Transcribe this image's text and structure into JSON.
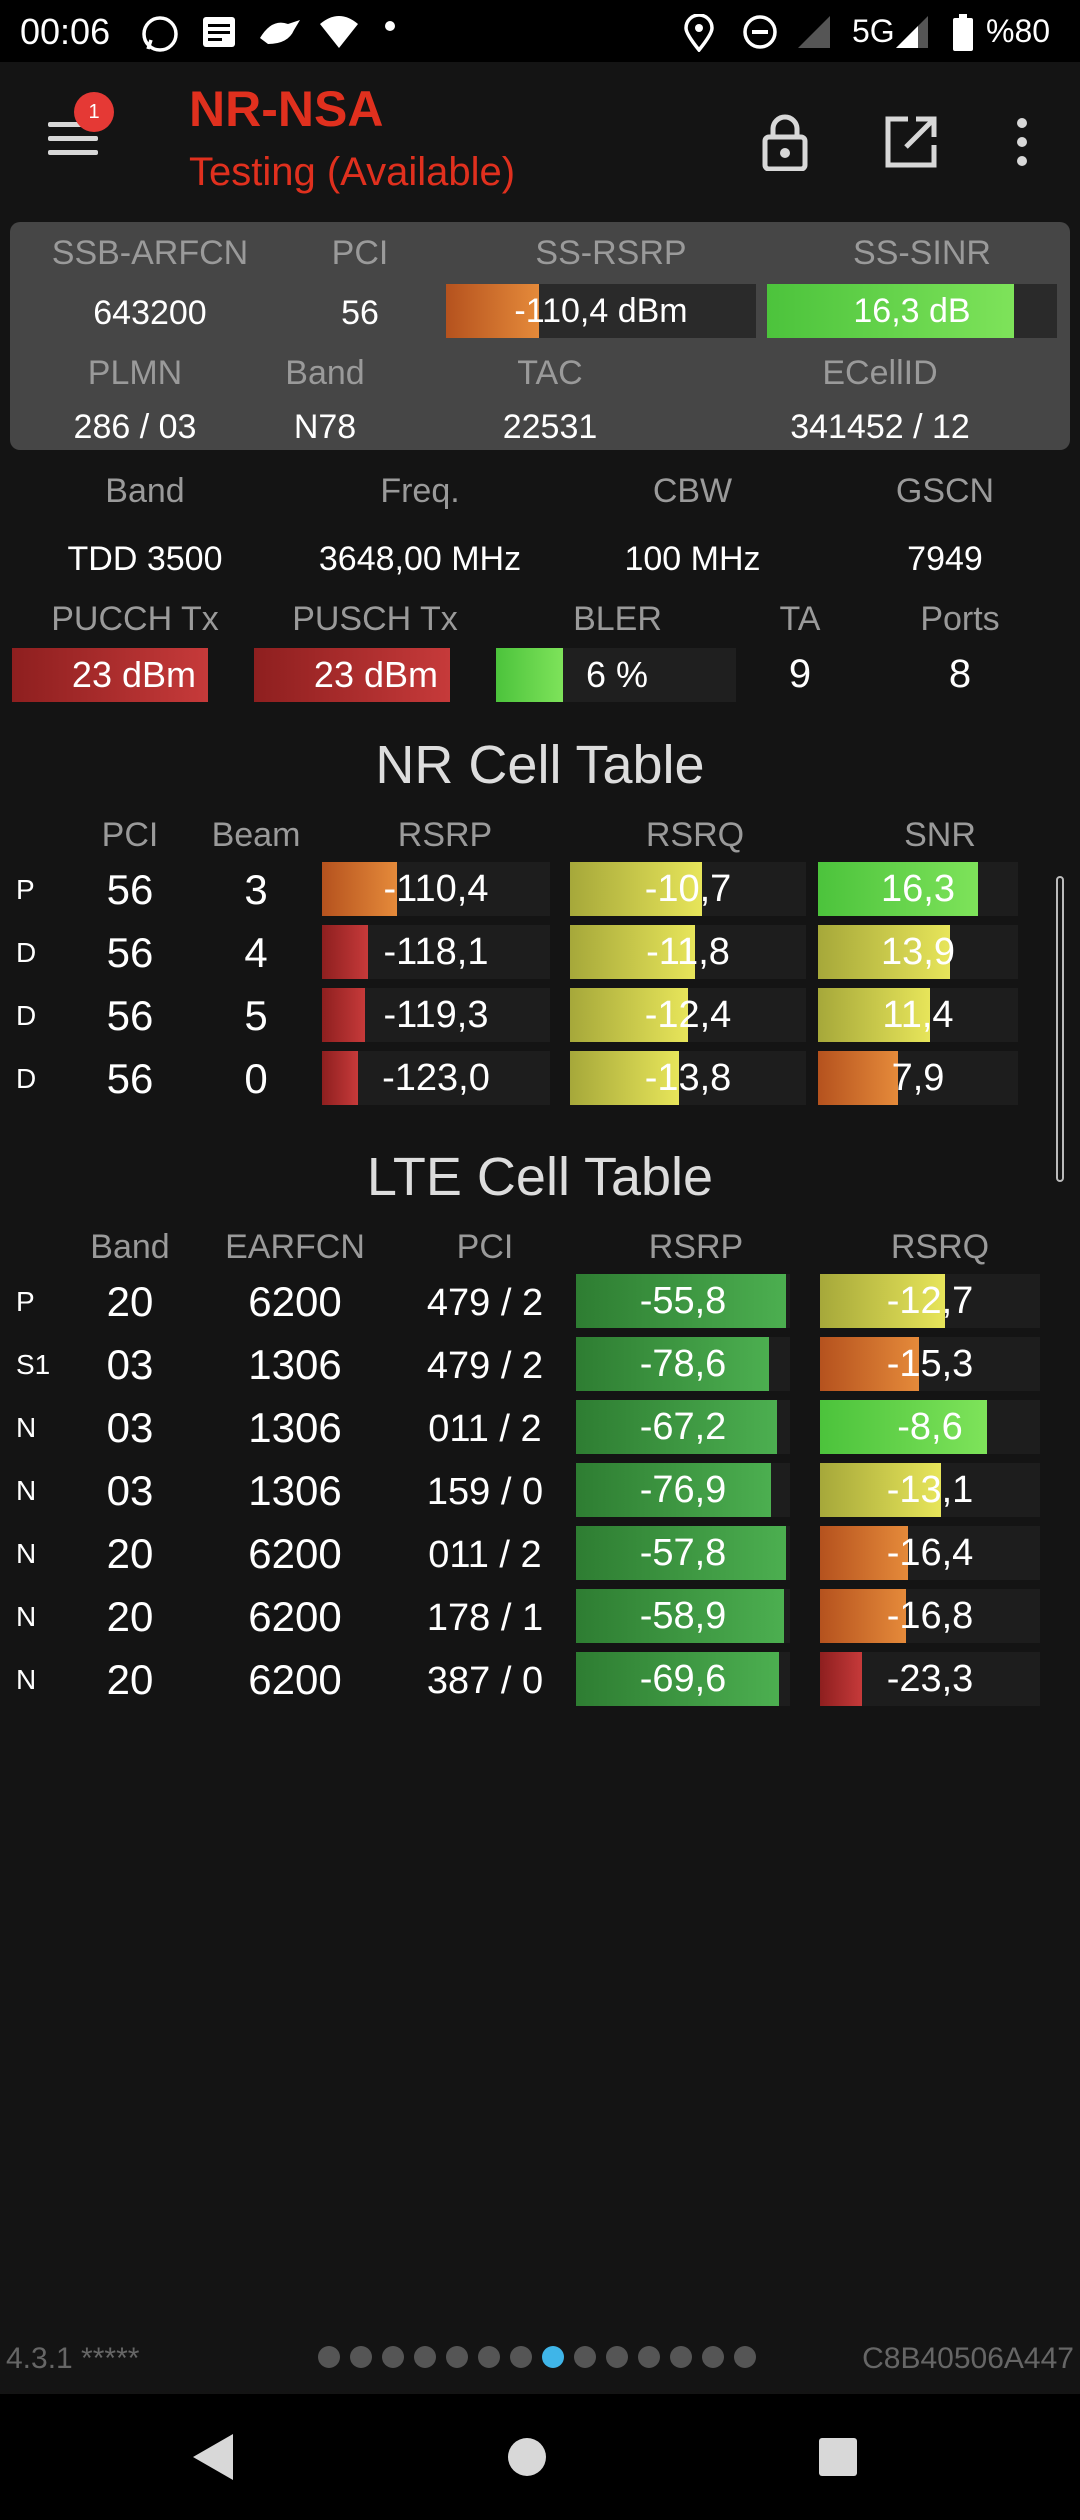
{
  "status_bar": {
    "time": "00:06",
    "network": "5G",
    "battery": "%80",
    "icons": [
      "whatsapp-icon",
      "message-icon",
      "bird-icon",
      "wifi-icon",
      "dot-icon",
      "location-icon",
      "dnd-icon",
      "signal-icon",
      "signal-5g-icon",
      "battery-icon"
    ]
  },
  "app_bar": {
    "title": "NR-NSA",
    "subtitle": "Testing (Available)",
    "notification_count": "1",
    "title_color": "#e0301e"
  },
  "summary": {
    "labels": {
      "arfcn": "SSB-ARFCN",
      "pci": "PCI",
      "rsrp": "SS-RSRP",
      "sinr": "SS-SINR",
      "plmn": "PLMN",
      "band": "Band",
      "tac": "TAC",
      "ecellid": "ECellID"
    },
    "values": {
      "arfcn": "643200",
      "pci": "56",
      "rsrp": "-110,4 dBm",
      "rsrp_level": 0.3,
      "sinr": "16,3 dB",
      "sinr_level": 0.85,
      "plmn": "286 / 03",
      "band": "N78",
      "tac": "22531",
      "ecellid": "341452 / 12"
    }
  },
  "radio": {
    "labels": {
      "band": "Band",
      "freq": "Freq.",
      "cbw": "CBW",
      "gscn": "GSCN",
      "pucch": "PUCCH Tx",
      "pusch": "PUSCH Tx",
      "bler": "BLER",
      "ta": "TA",
      "ports": "Ports"
    },
    "values": {
      "band": "TDD 3500",
      "freq": "3648,00 MHz",
      "cbw": "100 MHz",
      "gscn": "7949",
      "pucch": "23 dBm",
      "pusch": "23 dBm",
      "bler": "6 %",
      "bler_level": 0.28,
      "ta": "9",
      "ports": "8"
    }
  },
  "nr_table": {
    "title": "NR Cell Table",
    "headers": [
      "PCI",
      "Beam",
      "RSRP",
      "RSRQ",
      "SNR"
    ],
    "rows": [
      {
        "type": "P",
        "pci": "56",
        "beam": "3",
        "rsrp": "-110,4",
        "rsrp_level": 0.33,
        "rsrp_color": "orange",
        "rsrq": "-10,7",
        "rsrq_level": 0.56,
        "rsrq_color": "yellow",
        "snr": "16,3",
        "snr_level": 0.8,
        "snr_color": "lgreen"
      },
      {
        "type": "D",
        "pci": "56",
        "beam": "4",
        "rsrp": "-118,1",
        "rsrp_level": 0.2,
        "rsrp_color": "red",
        "rsrq": "-11,8",
        "rsrq_level": 0.53,
        "rsrq_color": "yellow",
        "snr": "13,9",
        "snr_level": 0.66,
        "snr_color": "yellow"
      },
      {
        "type": "D",
        "pci": "56",
        "beam": "5",
        "rsrp": "-119,3",
        "rsrp_level": 0.19,
        "rsrp_color": "red",
        "rsrq": "-12,4",
        "rsrq_level": 0.5,
        "rsrq_color": "yellow",
        "snr": "11,4",
        "snr_level": 0.56,
        "snr_color": "yellow"
      },
      {
        "type": "D",
        "pci": "56",
        "beam": "0",
        "rsrp": "-123,0",
        "rsrp_level": 0.16,
        "rsrp_color": "red",
        "rsrq": "-13,8",
        "rsrq_level": 0.46,
        "rsrq_color": "yellow",
        "snr": "7,9",
        "snr_level": 0.4,
        "snr_color": "orange"
      }
    ]
  },
  "lte_table": {
    "title": "LTE Cell Table",
    "headers": [
      "Band",
      "EARFCN",
      "PCI",
      "RSRP",
      "RSRQ"
    ],
    "rows": [
      {
        "type": "P",
        "band": "20",
        "earfcn": "6200",
        "pci": "479 / 2",
        "rsrp": "-55,8",
        "rsrp_level": 0.98,
        "rsrq": "-12,7",
        "rsrq_level": 0.57,
        "rsrq_color": "yellow"
      },
      {
        "type": "S1",
        "band": "03",
        "earfcn": "1306",
        "pci": "479 / 2",
        "rsrp": "-78,6",
        "rsrp_level": 0.9,
        "rsrq": "-15,3",
        "rsrq_level": 0.45,
        "rsrq_color": "orange"
      },
      {
        "type": "N",
        "band": "03",
        "earfcn": "1306",
        "pci": "011 / 2",
        "rsrp": "-67,2",
        "rsrp_level": 0.94,
        "rsrq": "-8,6",
        "rsrq_level": 0.76,
        "rsrq_color": "lgreen"
      },
      {
        "type": "N",
        "band": "03",
        "earfcn": "1306",
        "pci": "159 / 0",
        "rsrp": "-76,9",
        "rsrp_level": 0.91,
        "rsrq": "-13,1",
        "rsrq_level": 0.55,
        "rsrq_color": "yellow"
      },
      {
        "type": "N",
        "band": "20",
        "earfcn": "6200",
        "pci": "011 / 2",
        "rsrp": "-57,8",
        "rsrp_level": 0.98,
        "rsrq": "-16,4",
        "rsrq_level": 0.4,
        "rsrq_color": "orange"
      },
      {
        "type": "N",
        "band": "20",
        "earfcn": "6200",
        "pci": "178 / 1",
        "rsrp": "-58,9",
        "rsrp_level": 0.97,
        "rsrq": "-16,8",
        "rsrq_level": 0.39,
        "rsrq_color": "orange"
      },
      {
        "type": "N",
        "band": "20",
        "earfcn": "6200",
        "pci": "387 / 0",
        "rsrp": "-69,6",
        "rsrp_level": 0.95,
        "rsrq": "-23,3",
        "rsrq_level": 0.19,
        "rsrq_color": "red"
      }
    ]
  },
  "footer": {
    "version": "4.3.1 *****",
    "device_id": "C8B40506A447",
    "page_count": 14,
    "active_page": 8
  }
}
